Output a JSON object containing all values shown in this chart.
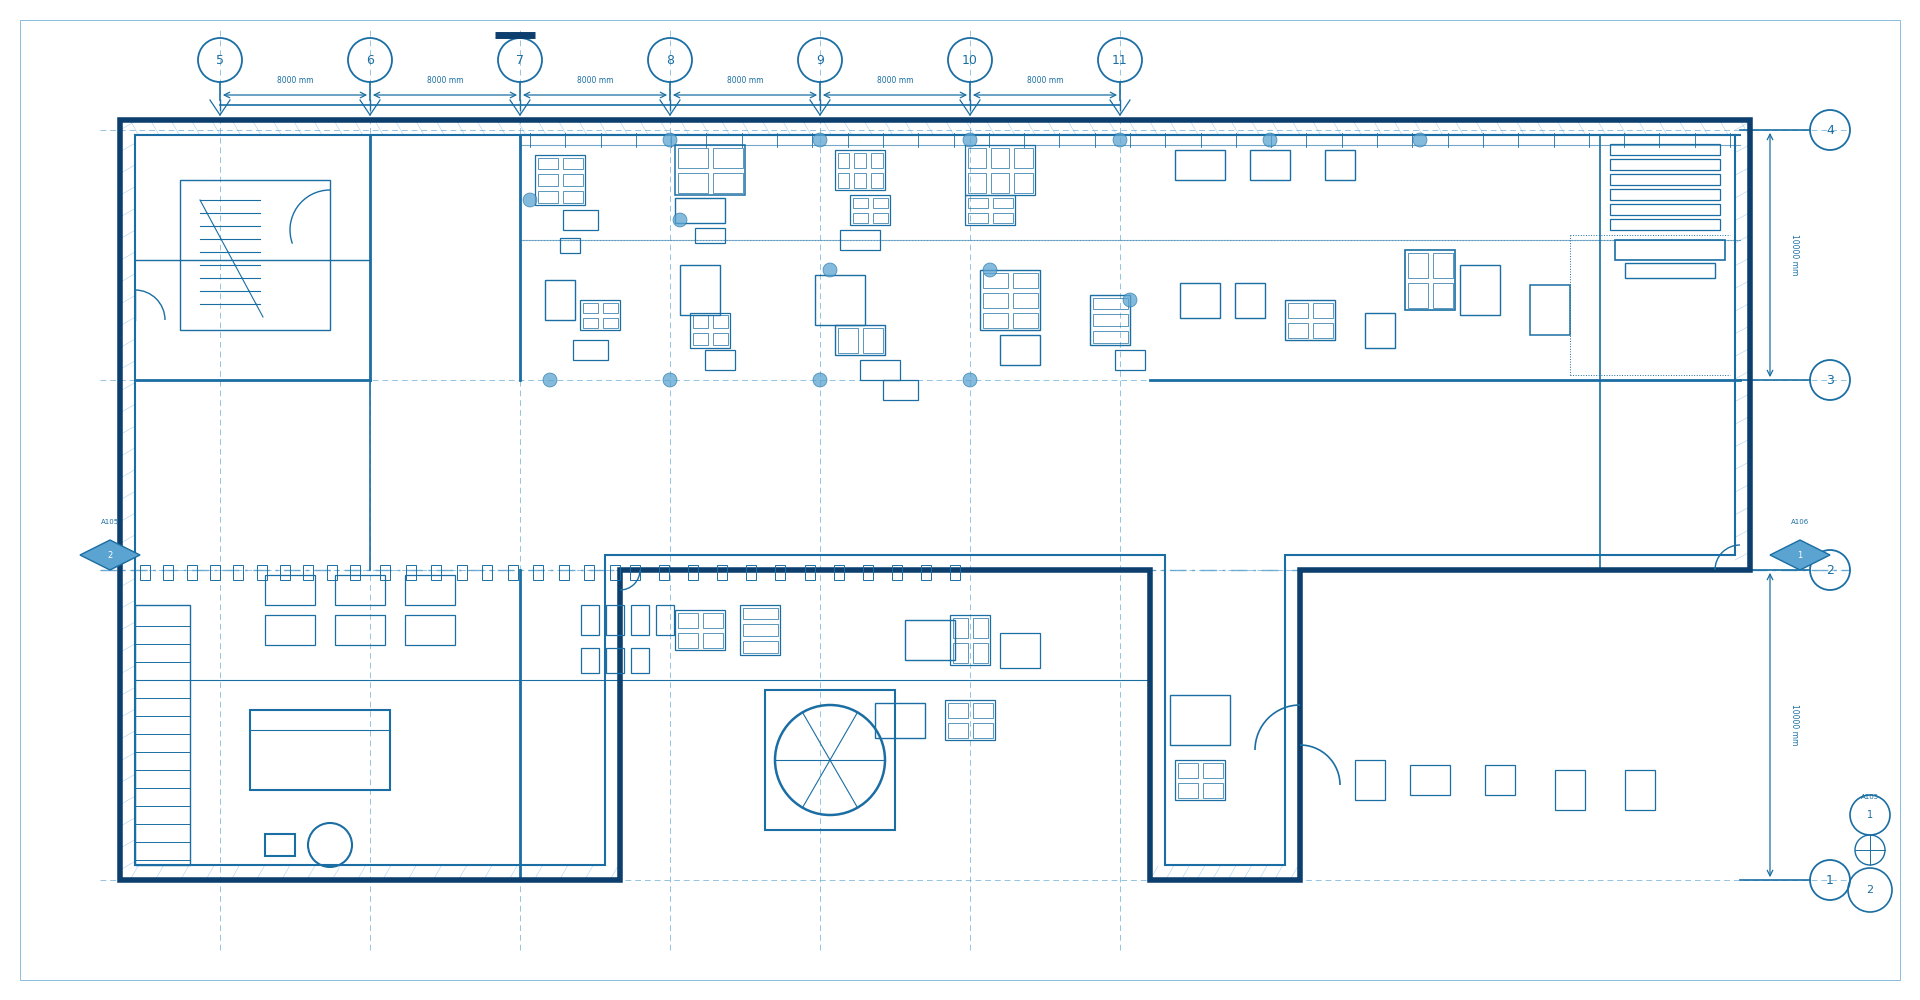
{
  "bg_color": "#ffffff",
  "lc": "#1a6ea3",
  "lc_light": "#5ba3d0",
  "lc_dark": "#0d3f6e",
  "dc": "#5ba3d0",
  "wall_lw": 4.0,
  "inner_lw": 2.0,
  "thin_lw": 1.0,
  "col_labels": [
    "5",
    "6",
    "7",
    "8",
    "9",
    "10",
    "11"
  ],
  "row_labels": [
    "4",
    "3",
    "2",
    "1"
  ],
  "dim_text": "8000 mm",
  "side_dim_text": "10000 mm"
}
